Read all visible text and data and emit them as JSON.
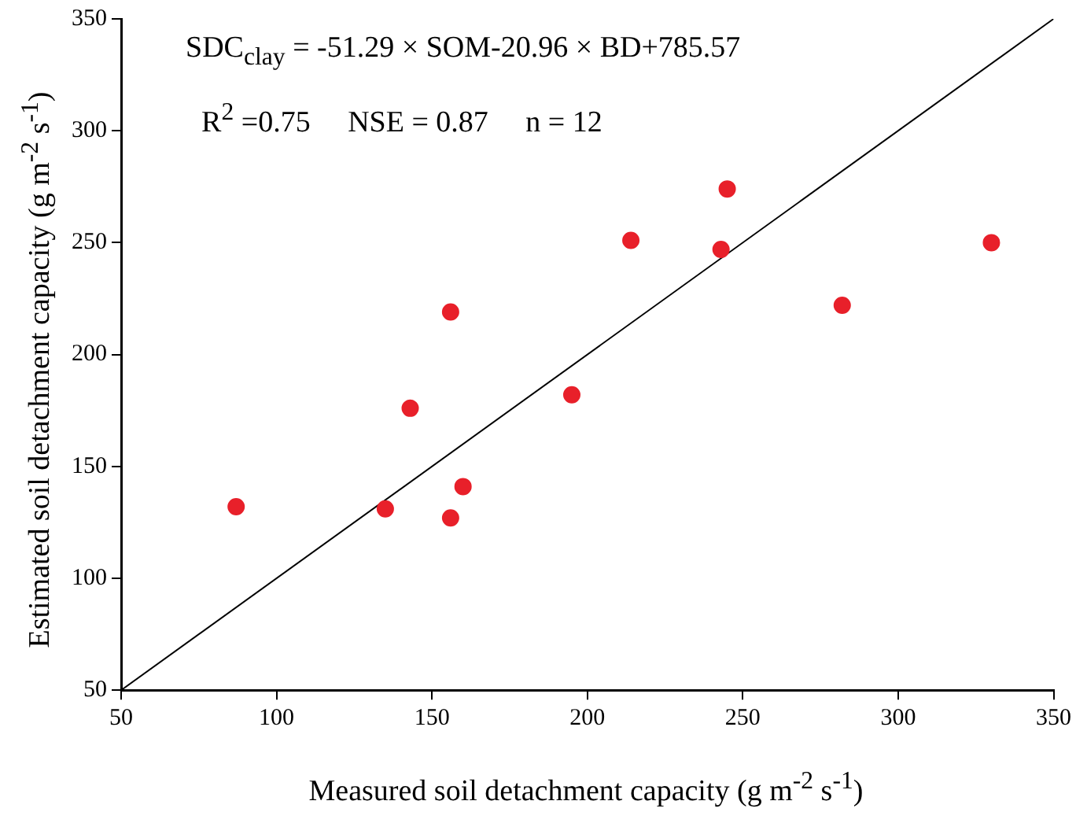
{
  "chart_data": {
    "type": "scatter",
    "xlabel": "Measured soil detachment capacity (g m$^{-2}$ s$^{-1}$)",
    "ylabel": "Estimated soil detachment capacity (g m$^{-2}$ s$^{-1}$)",
    "annotations": [
      "SDC$_{clay}$ = -51.29 × SOM-20.96 × BD+785.57",
      "R$^{2}$ =0.75     NSE = 0.87     n = 12"
    ],
    "series": [
      {
        "marker": "circle",
        "color": "#e8202a",
        "x": [
          87,
          135,
          143,
          156,
          156,
          160,
          195,
          214,
          243,
          245,
          282,
          330
        ],
        "values": [
          132,
          131,
          176,
          219,
          127,
          141,
          182,
          251,
          247,
          274,
          222,
          250
        ]
      },
      {
        "type": "line",
        "color": "#000000",
        "x": [
          50,
          350
        ],
        "values": [
          50,
          350
        ]
      }
    ],
    "xlim": [
      50,
      350
    ],
    "ylim": [
      50,
      350
    ],
    "xticks": [
      50,
      100,
      150,
      200,
      250,
      300,
      350
    ],
    "yticks": [
      50,
      100,
      150,
      200,
      250,
      300,
      350
    ],
    "grid": false,
    "legend": false
  }
}
